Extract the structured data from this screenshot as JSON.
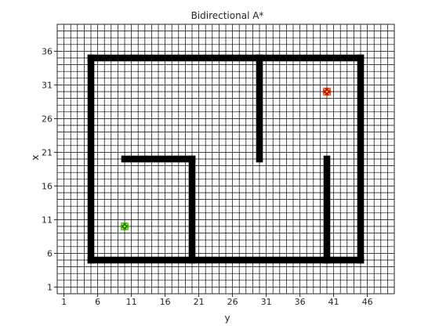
{
  "chart_data": {
    "type": "heatmap",
    "title": "Bidirectional A*",
    "xlabel": "y",
    "ylabel": "x",
    "xlim": [
      0,
      50
    ],
    "ylim": [
      0,
      40
    ],
    "grid": true,
    "xticks": [
      1,
      6,
      11,
      16,
      21,
      26,
      31,
      36,
      41,
      46
    ],
    "yticks": [
      1,
      6,
      11,
      16,
      21,
      26,
      31,
      36
    ],
    "colors": {
      "background": "#ffffff",
      "grid": "#000000",
      "obstacle": "#000000",
      "start": "#00c000",
      "goal": "#ff0000"
    },
    "obstacle_segments": [
      {
        "name": "bottom-wall",
        "y": [
          5,
          45
        ],
        "x": [
          5,
          5
        ]
      },
      {
        "name": "top-wall",
        "y": [
          5,
          45
        ],
        "x": [
          35,
          35
        ]
      },
      {
        "name": "left-wall",
        "y": [
          5,
          5
        ],
        "x": [
          5,
          35
        ]
      },
      {
        "name": "right-wall",
        "y": [
          45,
          45
        ],
        "x": [
          5,
          35
        ]
      },
      {
        "name": "inner-horizontal",
        "y": [
          10,
          20
        ],
        "x": [
          20,
          20
        ]
      },
      {
        "name": "inner-vertical-a",
        "y": [
          20,
          20
        ],
        "x": [
          5,
          20
        ]
      },
      {
        "name": "inner-vertical-b",
        "y": [
          30,
          30
        ],
        "x": [
          20,
          35
        ]
      },
      {
        "name": "inner-vertical-c",
        "y": [
          40,
          40
        ],
        "x": [
          5,
          20
        ]
      }
    ],
    "start": {
      "y": 10,
      "x": 10,
      "marker": "*"
    },
    "goal": {
      "y": 40,
      "x": 30,
      "marker": "*"
    }
  }
}
